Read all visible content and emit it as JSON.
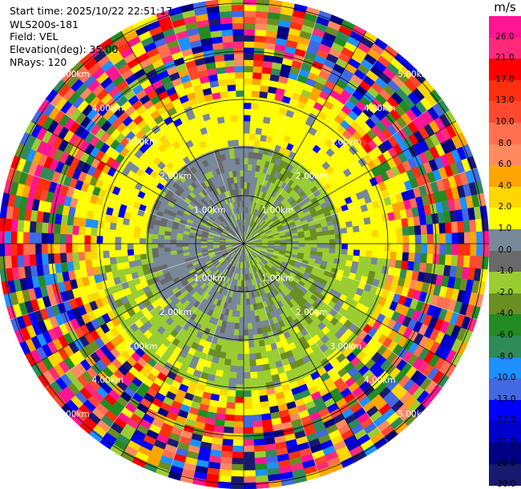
{
  "header": {
    "start_time": "Start time: 2025/10/22 22:51:17",
    "instrument": "WLS200s-181",
    "field": "Field: VEL",
    "elevation": "Elevation(deg): 35.00",
    "nrays": "NRays: 120"
  },
  "chart_data": {
    "type": "heatmap",
    "projection": "polar-ppi",
    "field": "VEL",
    "elevation_deg": 35.0,
    "n_rays": 120,
    "range_rings_km": [
      1.0,
      2.0,
      3.0,
      4.0,
      5.0
    ],
    "range_labels": [
      "1.00km",
      "2.00km",
      "3.00km",
      "4.00km",
      "5.00km"
    ],
    "max_range_km": 5.1,
    "colorbar": {
      "unit": "m/s",
      "vmin": -30.0,
      "vmax": 30.0,
      "ticks": [
        "26.0",
        "21.0",
        "17.0",
        "13.0",
        "10.0",
        "8.0",
        "6.0",
        "4.0",
        "2.0",
        "1.0",
        "0.0",
        "-1.0",
        "-2.0",
        "-4.0",
        "-6.0",
        "-8.0",
        "-10.0",
        "-13.0",
        "-17.0",
        "-21.0",
        "-26.0",
        "-30.0"
      ],
      "colors": [
        "#ff1493",
        "#ff2a7a",
        "#ff0000",
        "#ff3010",
        "#ff4a30",
        "#ff6f50",
        "#ff8a60",
        "#ffa500",
        "#ffd700",
        "#ffff00",
        "#778899",
        "#696969",
        "#9acd32",
        "#6b8e23",
        "#228b22",
        "#2e8b57",
        "#1e90ff",
        "#4169e1",
        "#0000ff",
        "#0000cd",
        "#000080",
        "#191970"
      ]
    }
  }
}
